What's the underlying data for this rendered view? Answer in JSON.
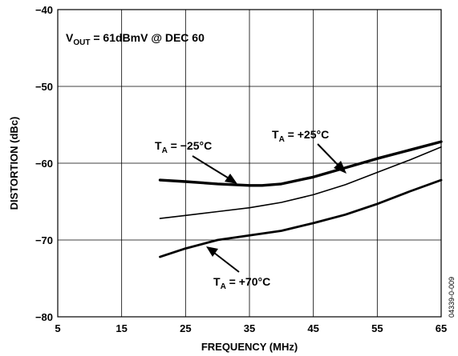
{
  "chart_data": {
    "type": "line",
    "xlabel": "FREQUENCY (MHz)",
    "ylabel": "DISTORTION (dBc)",
    "xlim": [
      5,
      65
    ],
    "ylim": [
      -80,
      -40
    ],
    "x_ticks": [
      "5",
      "15",
      "25",
      "35",
      "45",
      "55",
      "65"
    ],
    "y_ticks": [
      "−40",
      "−50",
      "−60",
      "−70",
      "−80"
    ],
    "grid": true,
    "condition": {
      "main": "V",
      "sub": "OUT",
      "rest": " = 61dBmV @ DEC 60"
    },
    "figure_id": "04339-0-009",
    "series": [
      {
        "label_main": "T",
        "label_sub": "A",
        "label_rest": " = −25°C",
        "x": [
          21,
          25,
          30,
          35,
          37,
          40,
          45,
          50,
          55,
          60,
          65
        ],
        "y": [
          -62.2,
          -62.4,
          -62.7,
          -62.9,
          -62.9,
          -62.7,
          -61.8,
          -60.6,
          -59.4,
          -58.3,
          -57.2
        ]
      },
      {
        "label_main": "T",
        "label_sub": "A",
        "label_rest": " = +25°C",
        "x": [
          21,
          25,
          30,
          35,
          40,
          45,
          50,
          55,
          60,
          65
        ],
        "y": [
          -67.2,
          -66.8,
          -66.3,
          -65.8,
          -65.1,
          -64.1,
          -62.8,
          -61.2,
          -59.6,
          -57.9
        ]
      },
      {
        "label_main": "T",
        "label_sub": "A",
        "label_rest": " = +70°C",
        "x": [
          21,
          25,
          30,
          35,
          40,
          45,
          50,
          55,
          60,
          65
        ],
        "y": [
          -72.2,
          -71.1,
          -70,
          -69.4,
          -68.8,
          -67.8,
          -66.7,
          -65.3,
          -63.7,
          -62.2
        ]
      }
    ]
  }
}
